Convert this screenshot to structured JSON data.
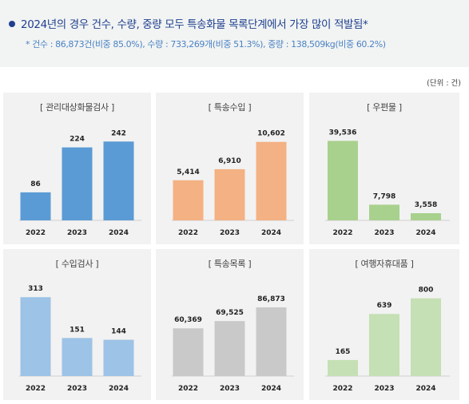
{
  "header": {
    "headline": "2024년의 경우 건수, 수량, 중량 모두 특송화물 목록단계에서 가장 많이 적발됨*",
    "subline": "* 건수 : 86,873건(비중 85.0%), 수량 : 733,269개(비중 51.3%), 중량 : 138,509kg(비중 60.2%)",
    "unit": "(단위 : 건)"
  },
  "colors": {
    "headline": "#1f3f8f",
    "subline": "#4b82c4",
    "panel_bg": "#f2f2f2",
    "header_bg": "#f2f4f3"
  },
  "chart_data": [
    {
      "type": "bar",
      "title": "[ 관리대상화물검사 ]",
      "categories": [
        "2022",
        "2023",
        "2024"
      ],
      "values": [
        86,
        224,
        242
      ],
      "labels": [
        "86",
        "224",
        "242"
      ],
      "color": "#5b9bd5",
      "max": 250
    },
    {
      "type": "bar",
      "title": "[ 특송수입 ]",
      "categories": [
        "2022",
        "2023",
        "2024"
      ],
      "values": [
        5414,
        6910,
        10602
      ],
      "labels": [
        "5,414",
        "6,910",
        "10,602"
      ],
      "color": "#f4b183",
      "max": 11000
    },
    {
      "type": "bar",
      "title": "[ 우편물 ]",
      "categories": [
        "2022",
        "2023",
        "2024"
      ],
      "values": [
        39536,
        7798,
        3558
      ],
      "labels": [
        "39,536",
        "7,798",
        "3,558"
      ],
      "color": "#a9d18e",
      "max": 40500
    },
    {
      "type": "bar",
      "title": "[ 수입검사 ]",
      "categories": [
        "2022",
        "2023",
        "2024"
      ],
      "values": [
        313,
        151,
        144
      ],
      "labels": [
        "313",
        "151",
        "144"
      ],
      "color": "#9dc3e6",
      "max": 320
    },
    {
      "type": "bar",
      "title": "[ 특송목록 ]",
      "categories": [
        "2022",
        "2023",
        "2024"
      ],
      "values": [
        60369,
        69525,
        86873
      ],
      "labels": [
        "60,369",
        "69,525",
        "86,873"
      ],
      "color": "#c9c9c9",
      "max": 102000
    },
    {
      "type": "bar",
      "title": "[ 여행자휴대품 ]",
      "categories": [
        "2022",
        "2023",
        "2024"
      ],
      "values": [
        165,
        639,
        800
      ],
      "labels": [
        "165",
        "639",
        "800"
      ],
      "color": "#c5e0b4",
      "max": 830
    }
  ]
}
